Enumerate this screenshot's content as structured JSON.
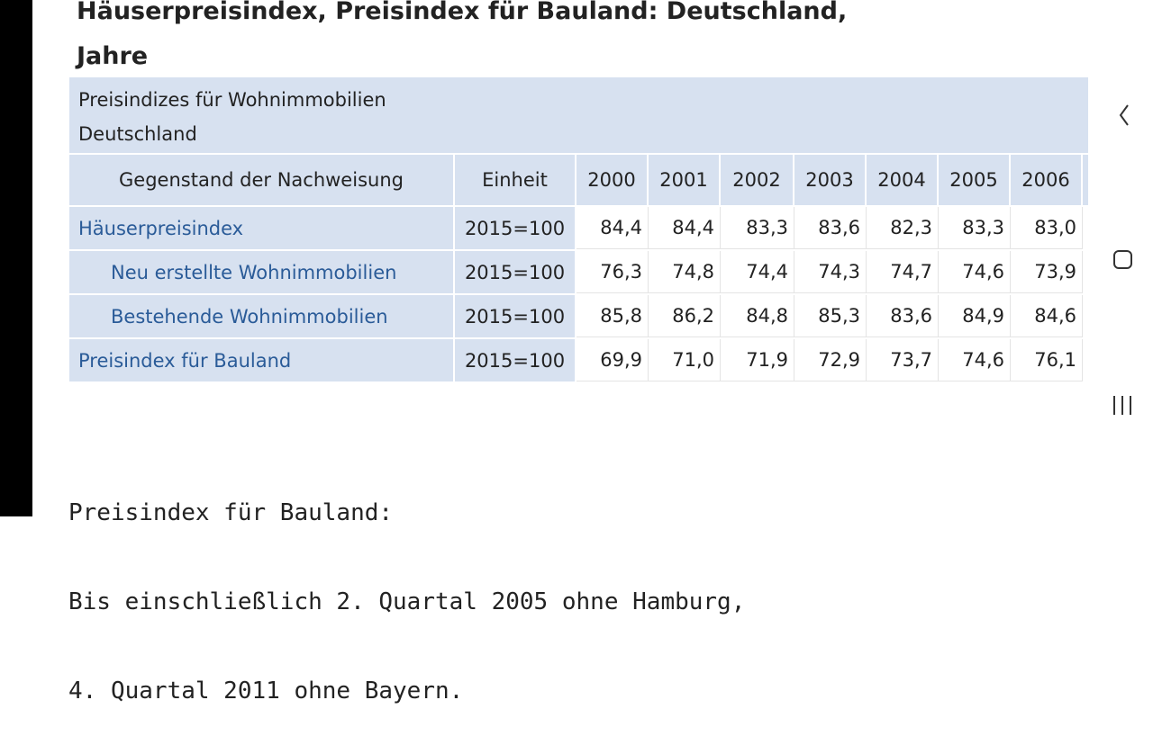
{
  "header": {
    "title": [
      "Häuserpreisindex, Preisindex für Bauland: Deutschland,",
      "Jahre"
    ]
  },
  "table": {
    "caption": [
      "Preisindizes für Wohnimmobilien",
      "Deutschland"
    ],
    "columns": [
      "Gegenstand der Nachweisung",
      "Einheit",
      "2000",
      "2001",
      "2002",
      "2003",
      "2004",
      "2005",
      "2006"
    ],
    "rows": [
      {
        "label": "Häuserpreisindex",
        "unit": "2015=100",
        "values": [
          "84,4",
          "84,4",
          "83,3",
          "83,6",
          "82,3",
          "83,3",
          "83,0"
        ],
        "children": [
          {
            "label": "Neu erstellte Wohnimmobilien",
            "unit": "2015=100",
            "values": [
              "76,3",
              "74,8",
              "74,4",
              "74,3",
              "74,7",
              "74,6",
              "73,9"
            ]
          },
          {
            "label": "Bestehende Wohnimmobilien",
            "unit": "2015=100",
            "values": [
              "85,8",
              "86,2",
              "84,8",
              "85,3",
              "83,6",
              "84,9",
              "84,6"
            ]
          }
        ]
      },
      {
        "label": "Preisindex für Bauland",
        "unit": "2015=100",
        "values": [
          "69,9",
          "71,0",
          "71,9",
          "72,9",
          "73,7",
          "74,6",
          "76,1"
        ]
      }
    ]
  },
  "footnote": [
    "Preisindex für Bauland:",
    "Bis einschließlich 2. Quartal 2005 ohne Hamburg,",
    "4. Quartal 2011 ohne Bayern."
  ]
}
